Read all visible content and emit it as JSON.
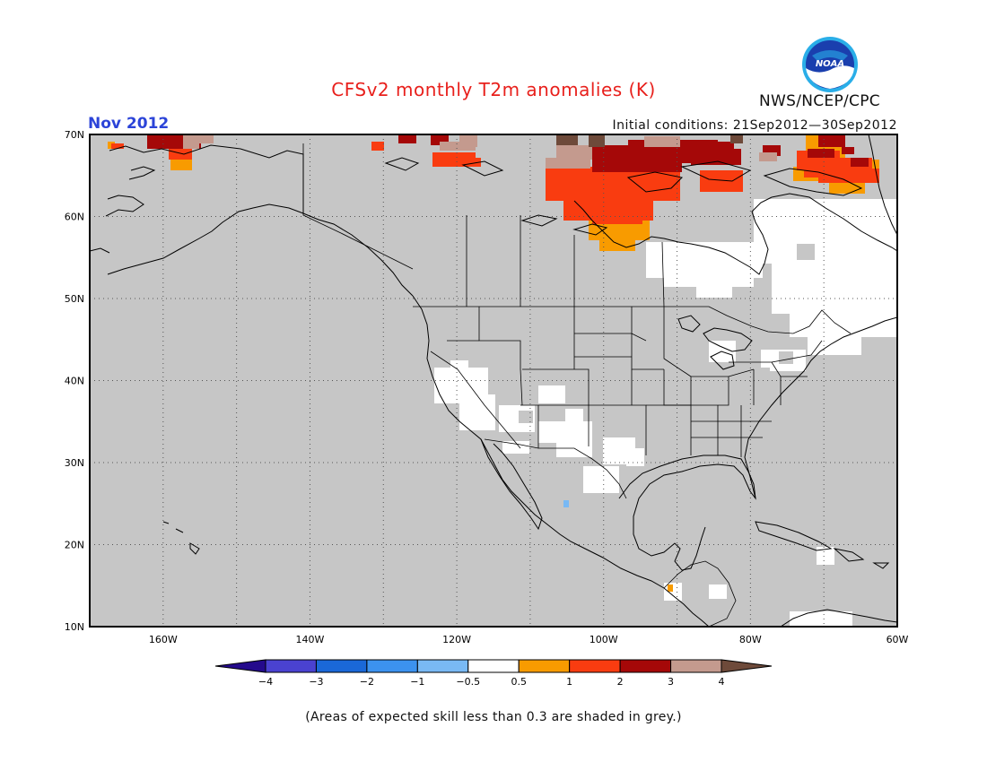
{
  "title": "CFSv2 monthly T2m anomalies (K)",
  "month": "Nov 2012",
  "initial_conditions": "Initial conditions: 21Sep2012—30Sep2012",
  "organization": "NWS/NCEP/CPC",
  "logo_text": "NOAA",
  "footnote": "(Areas of expected skill less than 0.3 are shaded in grey.)",
  "colors": {
    "title": "#e8201c",
    "month": "#2c44d8",
    "grey_mask": "#c6c6c6",
    "border": "#000000"
  },
  "map": {
    "lon_range": [
      -170,
      -60
    ],
    "lat_range": [
      10,
      70
    ],
    "lon_ticks": [
      "160W",
      "140W",
      "120W",
      "100W",
      "80W",
      "60W"
    ],
    "lat_ticks": [
      "10N",
      "20N",
      "30N",
      "40N",
      "50N",
      "60N",
      "70N"
    ]
  },
  "colorbar": {
    "labels": [
      "−4",
      "−3",
      "−2",
      "−1",
      "−0.5",
      "0.5",
      "1",
      "2",
      "3",
      "4"
    ],
    "colors": [
      "#240a8c",
      "#4a42d0",
      "#1a68d8",
      "#3c92ef",
      "#79b9f4",
      "#ffffff",
      "#f89b00",
      "#f93c10",
      "#a50808",
      "#c49a8e",
      "#6e4a3a"
    ]
  }
}
